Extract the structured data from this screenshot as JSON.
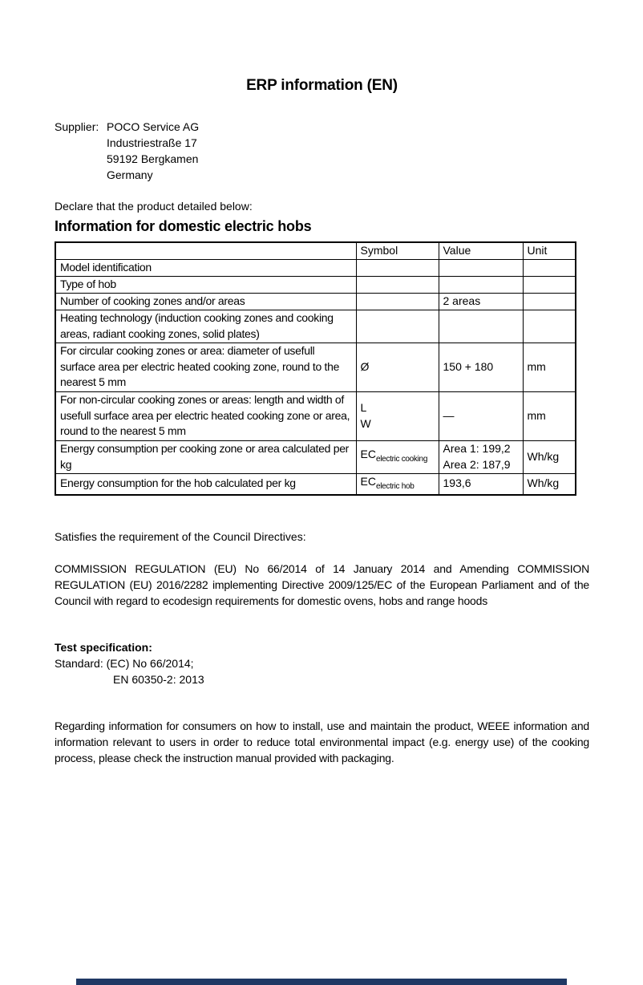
{
  "doc": {
    "title": "ERP information (EN)",
    "supplier_label": "Supplier:",
    "supplier_name": "POCO Service AG",
    "supplier_street": "Industriestraße 17",
    "supplier_city": "59192 Bergkamen",
    "supplier_country": "Germany",
    "declare": "Declare that the product detailed below:",
    "heading": "Information for domestic electric hobs"
  },
  "table": {
    "header_symbol": "Symbol",
    "header_value": "Value",
    "header_unit": "Unit",
    "rows": [
      {
        "description": "Model identification",
        "symbol": "",
        "value": "",
        "unit": ""
      },
      {
        "description": "Type of hob",
        "symbol": "",
        "value": "",
        "unit": ""
      },
      {
        "description": "Number of cooking zones and/or areas",
        "symbol": "",
        "value": "2 areas",
        "unit": ""
      },
      {
        "description": "Heating technology (induction cooking zones and cooking areas, radiant cooking zones, solid plates)",
        "symbol": "",
        "value": "",
        "unit": ""
      },
      {
        "description": "For circular cooking zones or area: diameter of usefull surface area per electric heated cooking zone, round to the nearest 5 mm",
        "symbol": "Ø",
        "value": "150 + 180",
        "unit": "mm"
      },
      {
        "description": "For non-circular cooking zones or areas: length and width of usefull surface area per electric heated cooking zone or area, round to the nearest 5 mm",
        "symbol_line1": "L",
        "symbol_line2": "W",
        "value": "—",
        "unit": "mm"
      },
      {
        "description": "Energy consumption per cooking zone or area calculated per kg",
        "symbol_base": "EC",
        "symbol_sub": "electric cooking",
        "value_line1": "Area 1: 199,2",
        "value_line2": "Area 2: 187,9",
        "unit": "Wh/kg"
      },
      {
        "description": "Energy consumption for the hob calculated per kg",
        "symbol_base": "EC",
        "symbol_sub": "electric hob",
        "value": "193,6",
        "unit": "Wh/kg"
      }
    ]
  },
  "statements": {
    "satisfies": "Satisfies the requirement of the Council Directives:",
    "regulation": "COMMISSION REGULATION (EU) No 66/2014 of 14 January 2014 and Amending COMMISSION REGULATION (EU) 2016/2282 implementing Directive 2009/125/EC of the European Parliament and of the Council with regard to ecodesign requirements for domestic ovens, hobs and range hoods",
    "test_heading": "Test specification:",
    "standard_line1": "Standard: (EC) No 66/2014;",
    "standard_line2": "EN 60350-2: 2013",
    "regarding": "Regarding information for consumers on how to install, use and maintain the product, WEEE information and information relevant to users in order to reduce total environmental impact (e.g. energy use) of the cooking process, please check the instruction manual provided with packaging."
  },
  "footer": {
    "bar_color": "#1f3864"
  }
}
